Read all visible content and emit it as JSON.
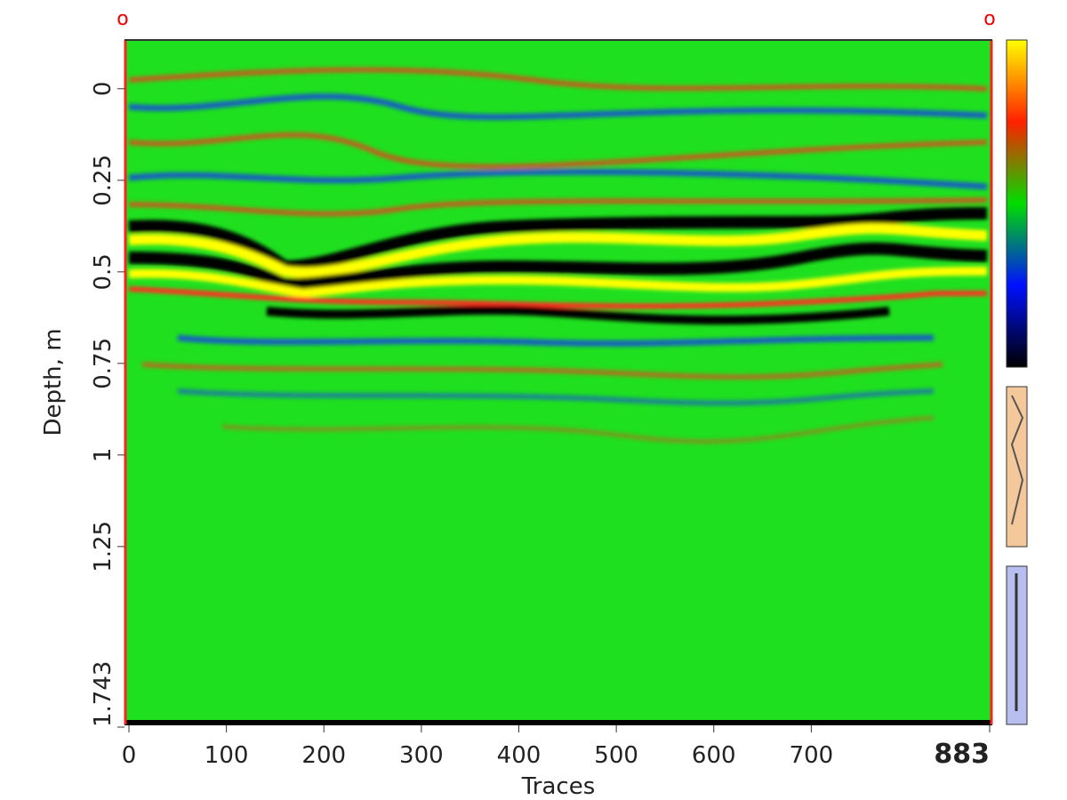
{
  "chart_data": {
    "type": "radargram",
    "x_label": "Traces",
    "y_label": "Depth, m",
    "xlim": [
      0,
      883
    ],
    "xticks": [
      0,
      100,
      200,
      300,
      400,
      500,
      600,
      700,
      883
    ],
    "ylim": [
      -0.133,
      1.743
    ],
    "yticks": [
      0,
      0.25,
      0.5,
      0.75,
      1,
      1.25,
      1.743
    ],
    "corner_markers": [
      "o",
      "o"
    ],
    "colorbar_colors": [
      "#ffff00",
      "#ff2000",
      "#00dd00",
      "#0010ff",
      "#000000"
    ]
  }
}
